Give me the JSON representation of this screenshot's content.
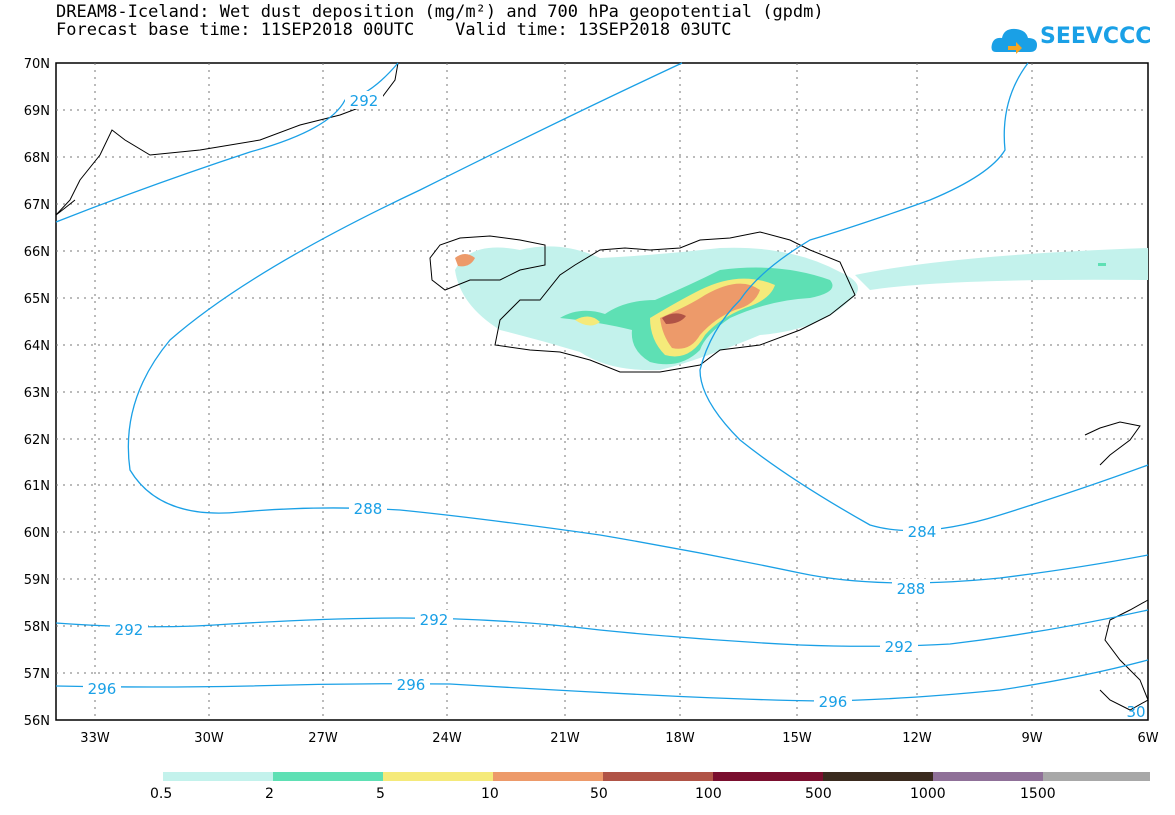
{
  "title": {
    "line1": "DREAM8-Iceland: Wet dust deposition (mg/m²) and 700 hPa geopotential (gpdm)",
    "line2": "Forecast base time: 11SEP2018 00UTC    Valid time: 13SEP2018 03UTC"
  },
  "logo": {
    "text": "SEEVCCC",
    "color": "#1aa0e6"
  },
  "map": {
    "lat_range": [
      56,
      70
    ],
    "lon_range": [
      -34,
      -6
    ],
    "lat_labels": [
      "70N",
      "69N",
      "68N",
      "67N",
      "66N",
      "65N",
      "64N",
      "63N",
      "62N",
      "61N",
      "60N",
      "59N",
      "58N",
      "57N",
      "56N"
    ],
    "lon_labels": [
      "33W",
      "30W",
      "27W",
      "24W",
      "21W",
      "18W",
      "15W",
      "12W",
      "9W",
      "6W"
    ],
    "contour_color": "#1aa0e6",
    "contour_labels": [
      "292",
      "288",
      "284",
      "288",
      "292",
      "292",
      "292",
      "296",
      "296",
      "296",
      "30"
    ]
  },
  "colorbar": {
    "colors": [
      "#c3f2ec",
      "#5ee0b4",
      "#f5ea7a",
      "#ed9a6a",
      "#b05346",
      "#7a0e2e",
      "#3a2a1e",
      "#8f7098",
      "#a8a8a8"
    ],
    "labels": [
      "0.5",
      "2",
      "5",
      "10",
      "50",
      "100",
      "500",
      "1000",
      "1500"
    ]
  }
}
